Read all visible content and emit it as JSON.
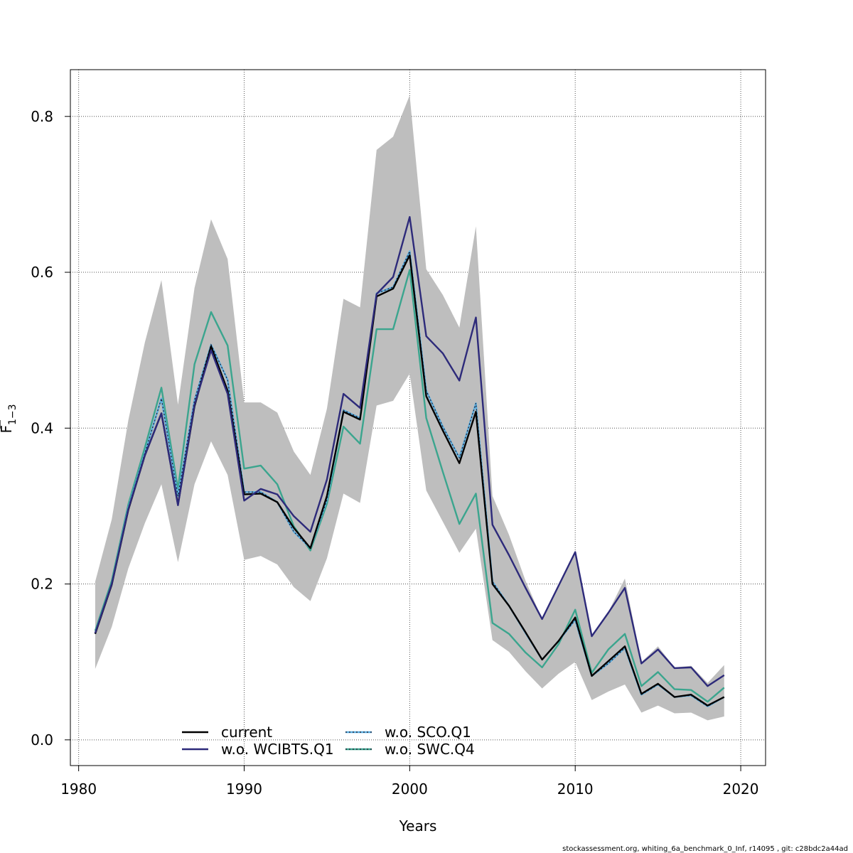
{
  "chart_data": {
    "type": "line",
    "xlabel": "Years",
    "ylabel": {
      "base": "F",
      "sub": "1−3"
    },
    "xlim": [
      1979.5,
      2021.5
    ],
    "ylim": [
      -0.033,
      0.86
    ],
    "xticks": [
      1980,
      1990,
      2000,
      2010,
      2020
    ],
    "yticks": [
      0.0,
      0.2,
      0.4,
      0.6,
      0.8
    ],
    "ytick_labels": [
      "0.0",
      "0.2",
      "0.4",
      "0.6",
      "0.8"
    ],
    "grid": true,
    "legend_position": "bottom-center",
    "x": [
      1981,
      1982,
      1983,
      1984,
      1985,
      1986,
      1987,
      1988,
      1989,
      1990,
      1991,
      1992,
      1993,
      1994,
      1995,
      1996,
      1997,
      1998,
      1999,
      2000,
      2001,
      2002,
      2003,
      2004,
      2005,
      2006,
      2007,
      2008,
      2009,
      2010,
      2011,
      2012,
      2013,
      2014,
      2015,
      2016,
      2017,
      2018,
      2019
    ],
    "band": {
      "color": "#bebebe",
      "upper": [
        0.203,
        0.283,
        0.41,
        0.51,
        0.59,
        0.43,
        0.58,
        0.668,
        0.617,
        0.433,
        0.433,
        0.42,
        0.37,
        0.34,
        0.425,
        0.566,
        0.555,
        0.757,
        0.774,
        0.827,
        0.604,
        0.571,
        0.529,
        0.659,
        0.313,
        0.263,
        0.204,
        0.155,
        0.199,
        0.24,
        0.135,
        0.164,
        0.207,
        0.1,
        0.12,
        0.093,
        0.095,
        0.073,
        0.096
      ],
      "lower": [
        0.091,
        0.145,
        0.22,
        0.278,
        0.328,
        0.228,
        0.328,
        0.383,
        0.34,
        0.231,
        0.236,
        0.225,
        0.196,
        0.178,
        0.233,
        0.316,
        0.304,
        0.429,
        0.435,
        0.47,
        0.32,
        0.28,
        0.24,
        0.271,
        0.128,
        0.113,
        0.088,
        0.066,
        0.085,
        0.1,
        0.051,
        0.062,
        0.071,
        0.035,
        0.044,
        0.034,
        0.035,
        0.025,
        0.03
      ]
    },
    "series": [
      {
        "name": "current",
        "color": "#000000",
        "values": [
          0.136,
          0.199,
          0.295,
          0.365,
          0.419,
          0.302,
          0.428,
          0.505,
          0.448,
          0.315,
          0.316,
          0.305,
          0.272,
          0.246,
          0.313,
          0.421,
          0.411,
          0.569,
          0.579,
          0.622,
          0.441,
          0.397,
          0.355,
          0.421,
          0.2,
          0.172,
          0.138,
          0.103,
          0.127,
          0.157,
          0.082,
          0.101,
          0.12,
          0.059,
          0.072,
          0.055,
          0.058,
          0.044,
          0.055
        ]
      },
      {
        "name": "w.o. WCIBTS.Q1",
        "color": "#2d2a7a",
        "values": [
          0.137,
          0.2,
          0.296,
          0.365,
          0.419,
          0.301,
          0.43,
          0.5,
          0.444,
          0.307,
          0.322,
          0.315,
          0.287,
          0.267,
          0.334,
          0.444,
          0.426,
          0.572,
          0.594,
          0.671,
          0.518,
          0.496,
          0.461,
          0.542,
          0.276,
          0.237,
          0.195,
          0.155,
          0.198,
          0.241,
          0.133,
          0.163,
          0.195,
          0.098,
          0.116,
          0.092,
          0.093,
          0.069,
          0.083
        ]
      },
      {
        "name": "w.o. SCO.Q1",
        "color": "#5aaee0",
        "values": [
          0.137,
          0.2,
          0.298,
          0.368,
          0.438,
          0.313,
          0.436,
          0.507,
          0.462,
          0.318,
          0.318,
          0.305,
          0.267,
          0.246,
          0.308,
          0.423,
          0.413,
          0.573,
          0.581,
          0.627,
          0.448,
          0.402,
          0.362,
          0.432,
          0.203,
          0.172,
          0.137,
          0.103,
          0.127,
          0.154,
          0.082,
          0.098,
          0.118,
          0.058,
          0.071,
          0.055,
          0.057,
          0.043,
          0.055
        ]
      },
      {
        "name": "w.o. SWC.Q4",
        "color": "#3ba58e",
        "values": [
          0.14,
          0.204,
          0.302,
          0.375,
          0.452,
          0.322,
          0.482,
          0.549,
          0.506,
          0.348,
          0.352,
          0.328,
          0.274,
          0.243,
          0.303,
          0.402,
          0.38,
          0.527,
          0.527,
          0.603,
          0.413,
          0.344,
          0.277,
          0.316,
          0.15,
          0.136,
          0.112,
          0.093,
          0.123,
          0.167,
          0.086,
          0.116,
          0.136,
          0.069,
          0.087,
          0.065,
          0.064,
          0.049,
          0.067
        ]
      }
    ],
    "legend": [
      {
        "label": "current",
        "color": "#000000",
        "style": "solid"
      },
      {
        "label": "w.o. SCO.Q1",
        "color": "#5aaee0",
        "style": "dotted"
      },
      {
        "label": "w.o. WCIBTS.Q1",
        "color": "#2d2a7a",
        "style": "solid"
      },
      {
        "label": "w.o. SWC.Q4",
        "color": "#3ba58e",
        "style": "dotted"
      }
    ]
  },
  "footer": "stockassessment.org, whiting_6a_benchmark_0_Inf, r14095 , git: c28bdc2a44ad"
}
